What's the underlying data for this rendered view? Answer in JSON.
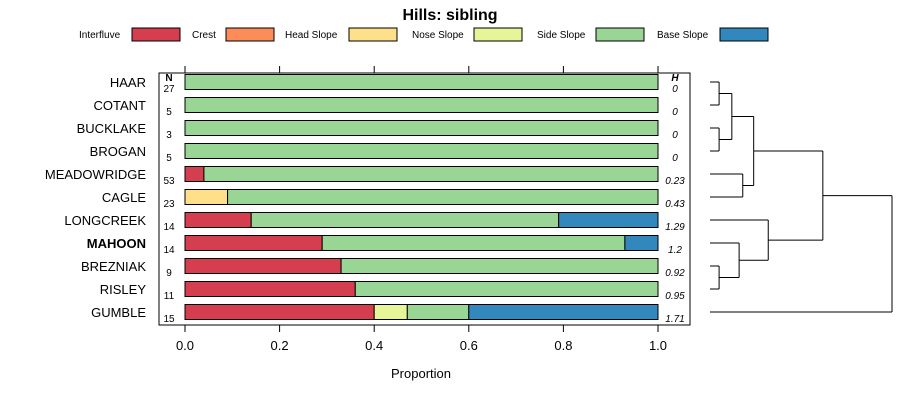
{
  "chart_data": {
    "type": "bar",
    "orientation": "horizontal",
    "stacked": true,
    "title": "Hills: sibling",
    "xlabel": "Proportion",
    "ylabel": "",
    "xlim": [
      0,
      1
    ],
    "xticks": [
      "0.0",
      "0.2",
      "0.4",
      "0.6",
      "0.8",
      "1.0"
    ],
    "xtick_values": [
      0,
      0.2,
      0.4,
      0.6,
      0.8,
      1.0
    ],
    "n_header": "N",
    "h_header": "H",
    "legend_position": "top",
    "legend": [
      {
        "name": "Interfluve",
        "color": "#D53E4F"
      },
      {
        "name": "Crest",
        "color": "#FC8D59"
      },
      {
        "name": "Head Slope",
        "color": "#FEE08B"
      },
      {
        "name": "Nose Slope",
        "color": "#E6F598"
      },
      {
        "name": "Side Slope",
        "color": "#99D594"
      },
      {
        "name": "Base Slope",
        "color": "#3288BD"
      }
    ],
    "categories": [
      "HAAR",
      "COTANT",
      "BUCKLAKE",
      "BROGAN",
      "MEADOWRIDGE",
      "CAGLE",
      "LONGCREEK",
      "MAHOON",
      "BREZNIAK",
      "RISLEY",
      "GUMBLE"
    ],
    "highlight": "MAHOON",
    "n": [
      "27",
      "5",
      "3",
      "5",
      "53",
      "23",
      "14",
      "14",
      "9",
      "11",
      "15"
    ],
    "h": [
      "0",
      "0",
      "0",
      "0",
      "0.23",
      "0.43",
      "1.29",
      "1.2",
      "0.92",
      "0.95",
      "1.71"
    ],
    "series": [
      {
        "name": "Interfluve",
        "values": [
          0,
          0,
          0,
          0,
          0.04,
          0,
          0.14,
          0.29,
          0.33,
          0.36,
          0.4
        ]
      },
      {
        "name": "Crest",
        "values": [
          0,
          0,
          0,
          0,
          0,
          0,
          0,
          0,
          0,
          0,
          0
        ]
      },
      {
        "name": "Head Slope",
        "values": [
          0,
          0,
          0,
          0,
          0,
          0.09,
          0,
          0,
          0,
          0,
          0
        ]
      },
      {
        "name": "Nose Slope",
        "values": [
          0,
          0,
          0,
          0,
          0,
          0,
          0,
          0,
          0,
          0,
          0.07
        ]
      },
      {
        "name": "Side Slope",
        "values": [
          1.0,
          1.0,
          1.0,
          1.0,
          0.96,
          0.91,
          0.65,
          0.64,
          0.67,
          0.64,
          0.13
        ]
      },
      {
        "name": "Base Slope",
        "values": [
          0,
          0,
          0,
          0,
          0,
          0,
          0.21,
          0.07,
          0,
          0,
          0.4
        ]
      }
    ],
    "dendrogram": {
      "merges": [
        {
          "id": "m1",
          "left": "HAAR",
          "right": "COTANT",
          "height": 0.05
        },
        {
          "id": "m2",
          "left": "BUCKLAKE",
          "right": "BROGAN",
          "height": 0.05
        },
        {
          "id": "m3",
          "left": "m1",
          "right": "m2",
          "height": 0.12
        },
        {
          "id": "m4",
          "left": "MEADOWRIDGE",
          "right": "CAGLE",
          "height": 0.18
        },
        {
          "id": "m5",
          "left": "m3",
          "right": "m4",
          "height": 0.24
        },
        {
          "id": "m6",
          "left": "BREZNIAK",
          "right": "RISLEY",
          "height": 0.05
        },
        {
          "id": "m7",
          "left": "MAHOON",
          "right": "m6",
          "height": 0.16
        },
        {
          "id": "m8",
          "left": "LONGCREEK",
          "right": "m7",
          "height": 0.32
        },
        {
          "id": "m9",
          "left": "m5",
          "right": "m8",
          "height": 0.62
        },
        {
          "id": "m10",
          "left": "m9",
          "right": "GUMBLE",
          "height": 1.0
        }
      ]
    }
  }
}
